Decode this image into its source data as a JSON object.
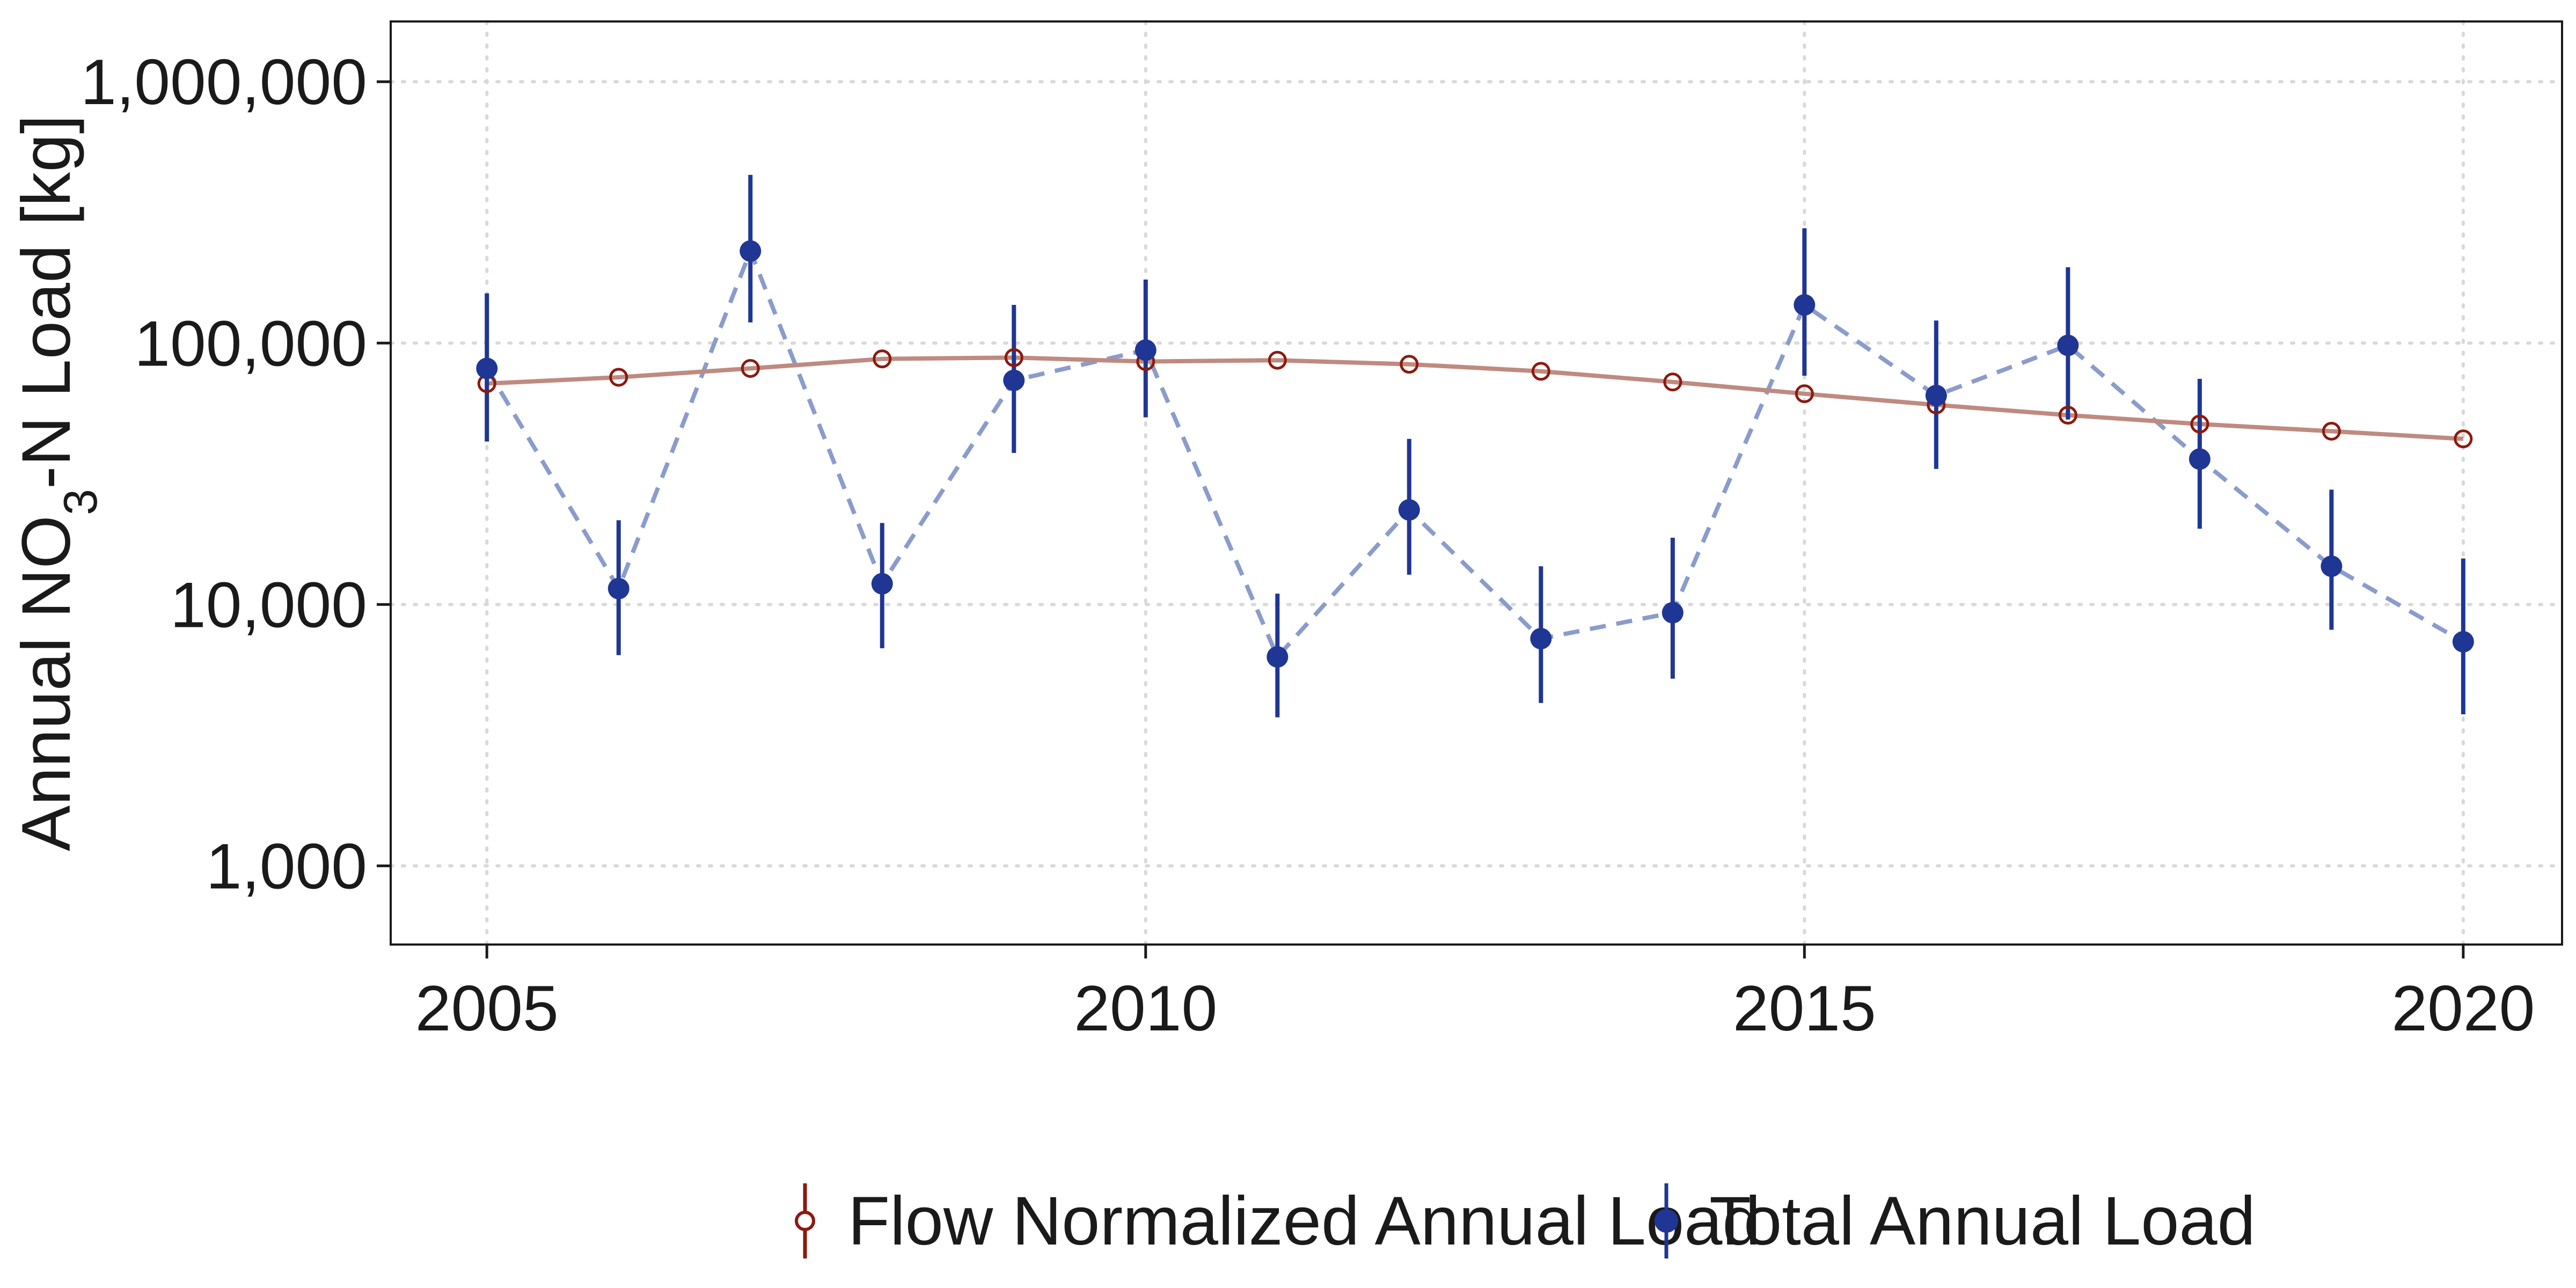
{
  "chart_data": {
    "type": "line",
    "title": "",
    "xlabel": "",
    "ylabel": "Annual NO₃-N Load [kg]",
    "ylabel_parts": {
      "pre": "Annual NO",
      "sub": "3",
      "post": "-N Load [kg]"
    },
    "y_scale": "log",
    "xlim": [
      2004.27,
      2020.75
    ],
    "ylim": [
      500,
      1700000
    ],
    "x_ticks": [
      2005,
      2010,
      2015,
      2020
    ],
    "x_tick_labels": [
      "2005",
      "2010",
      "2015",
      "2020"
    ],
    "y_ticks": [
      1000,
      10000,
      100000,
      1000000
    ],
    "y_tick_labels": [
      "1,000",
      "10,000",
      "100,000",
      "1,000,000"
    ],
    "grid": true,
    "legend_position": "bottom",
    "series": [
      {
        "name": "Flow Normalized Annual Load",
        "color": "#8b1a0e",
        "line_color": "#bf8a80",
        "line_style": "solid",
        "marker": "open-circle",
        "x": [
          2005,
          2006,
          2007,
          2008,
          2009,
          2010,
          2011,
          2012,
          2013,
          2014,
          2015,
          2016,
          2017,
          2018,
          2019,
          2020
        ],
        "y": [
          70000,
          74000,
          80000,
          87000,
          88000,
          85000,
          86000,
          83000,
          78000,
          71000,
          64000,
          58000,
          53000,
          49000,
          46000,
          43000
        ]
      },
      {
        "name": "Total Annual Load",
        "color": "#1f3694",
        "line_color": "#8a9ccc",
        "line_style": "dashed",
        "marker": "filled-circle",
        "x": [
          2005,
          2006,
          2007,
          2008,
          2009,
          2010,
          2011,
          2012,
          2013,
          2014,
          2015,
          2016,
          2017,
          2018,
          2019,
          2020
        ],
        "y": [
          80000,
          11500,
          225000,
          12000,
          72000,
          94000,
          6300,
          23000,
          7400,
          9300,
          140000,
          63000,
          98000,
          36000,
          14000,
          7200
        ],
        "lower": [
          42000,
          6400,
          120000,
          6800,
          38000,
          52000,
          3700,
          13000,
          4200,
          5200,
          75000,
          33000,
          51000,
          19500,
          8000,
          3800
        ],
        "upper": [
          155000,
          21000,
          440000,
          20500,
          140000,
          175000,
          11000,
          43000,
          14000,
          18000,
          275000,
          122000,
          195000,
          73000,
          27500,
          15000
        ]
      }
    ]
  }
}
